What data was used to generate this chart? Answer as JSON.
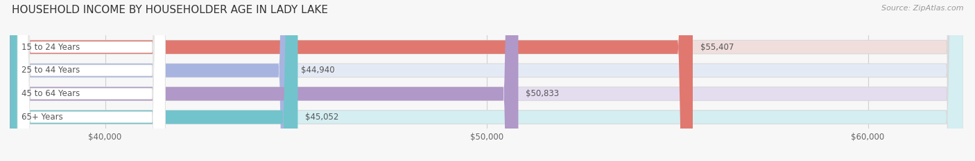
{
  "title": "HOUSEHOLD INCOME BY HOUSEHOLDER AGE IN LADY LAKE",
  "source": "Source: ZipAtlas.com",
  "categories": [
    "15 to 24 Years",
    "25 to 44 Years",
    "45 to 64 Years",
    "65+ Years"
  ],
  "values": [
    55407,
    44940,
    50833,
    45052
  ],
  "labels": [
    "$55,407",
    "$44,940",
    "$50,833",
    "$45,052"
  ],
  "bar_colors": [
    "#E07870",
    "#A8B4E0",
    "#B098C8",
    "#72C4CC"
  ],
  "bar_bg_colors": [
    "#F0DEDD",
    "#E4EAF5",
    "#E4DDF0",
    "#D4EEF2"
  ],
  "track_edge_color": "#D8D8D8",
  "xlim_min": 37500,
  "xlim_max": 62500,
  "xticks": [
    40000,
    50000,
    60000
  ],
  "xticklabels": [
    "$40,000",
    "$50,000",
    "$60,000"
  ],
  "title_fontsize": 11,
  "source_fontsize": 8,
  "label_fontsize": 8.5,
  "cat_fontsize": 8.5,
  "xtick_fontsize": 8.5,
  "background_color": "#f7f7f7",
  "grid_color": "#D0D0D0",
  "label_color": "#555555",
  "cat_label_color": "#555555",
  "white_pill_color": "#FFFFFF",
  "bar_height": 0.58,
  "bar_gap": 0.42
}
